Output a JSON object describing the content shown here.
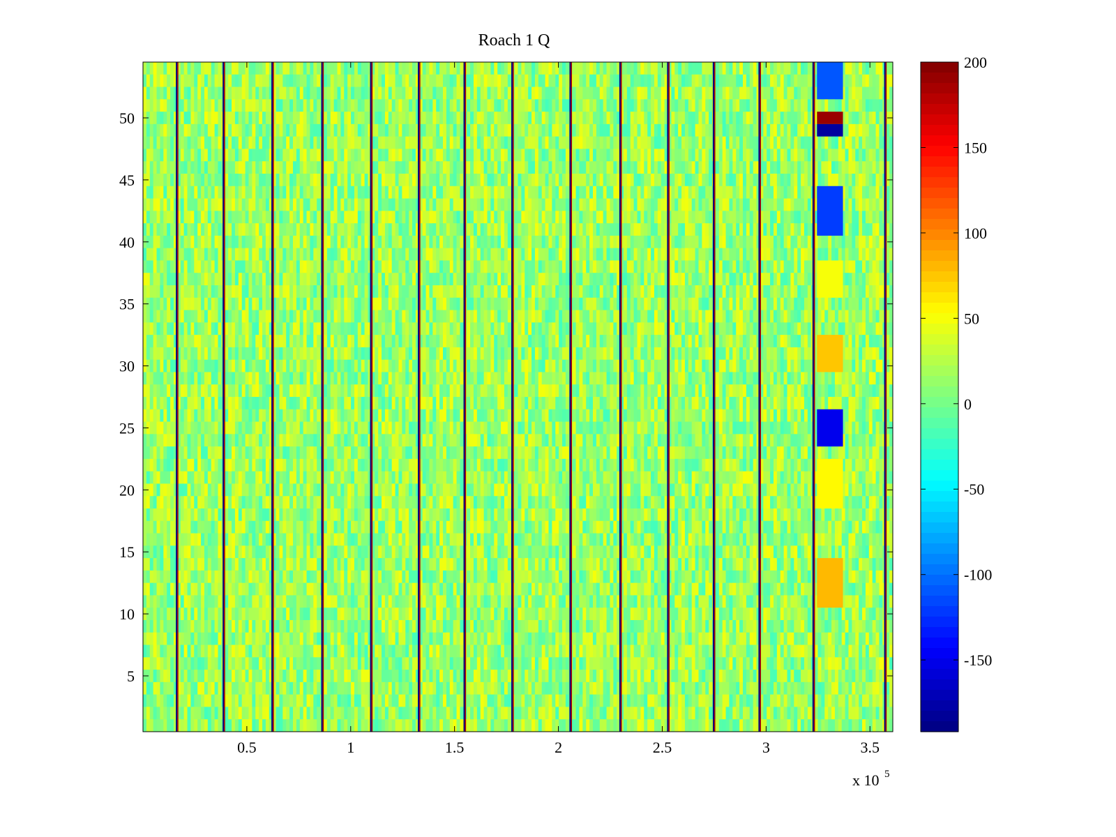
{
  "chart_data": {
    "type": "heatmap",
    "title": "Roach 1 Q",
    "xlabel": "",
    "ylabel": "",
    "x_multiplier_label": "x 10",
    "x_multiplier_exponent": "5",
    "xlim": [
      0,
      3.61
    ],
    "ylim": [
      0.5,
      54.5
    ],
    "rows": 54,
    "x_ticks": [
      0.5,
      1,
      1.5,
      2,
      2.5,
      3,
      3.5
    ],
    "x_tick_labels": [
      "0.5",
      "1",
      "1.5",
      "2",
      "2.5",
      "3",
      "3.5"
    ],
    "y_ticks": [
      5,
      10,
      15,
      20,
      25,
      30,
      35,
      40,
      45,
      50
    ],
    "y_tick_labels": [
      "5",
      "10",
      "15",
      "20",
      "25",
      "30",
      "35",
      "40",
      "45",
      "50"
    ],
    "colorbar": {
      "colormap": "jet",
      "clim": [
        -192,
        200
      ],
      "ticks": [
        200,
        150,
        100,
        50,
        0,
        -50,
        -100,
        -150
      ],
      "tick_labels": [
        "200",
        "150",
        "100",
        "50",
        "0",
        "-50",
        "-100",
        "-150"
      ]
    },
    "background_level": 15,
    "vertical_bands": [
      0.165,
      0.39,
      0.625,
      0.865,
      1.1,
      1.33,
      1.55,
      1.78,
      2.06,
      2.3,
      2.53,
      2.75,
      2.97,
      3.23,
      3.575
    ],
    "hotspots": [
      {
        "x_start": 3.245,
        "x_end": 3.37,
        "row_start": 50,
        "row_end": 50,
        "value": 190
      },
      {
        "x_start": 3.245,
        "x_end": 3.37,
        "row_start": 49,
        "row_end": 49,
        "value": -180
      },
      {
        "x_start": 3.245,
        "x_end": 3.37,
        "row_start": 24,
        "row_end": 26,
        "value": -150
      },
      {
        "x_start": 3.245,
        "x_end": 3.37,
        "row_start": 41,
        "row_end": 44,
        "value": -120
      },
      {
        "x_start": 3.245,
        "x_end": 3.37,
        "row_start": 52,
        "row_end": 54,
        "value": -110
      },
      {
        "x_start": 3.245,
        "x_end": 3.37,
        "row_start": 11,
        "row_end": 14,
        "value": 80
      },
      {
        "x_start": 3.245,
        "x_end": 3.37,
        "row_start": 30,
        "row_end": 32,
        "value": 75
      },
      {
        "x_start": 3.245,
        "x_end": 3.37,
        "row_start": 19,
        "row_end": 22,
        "value": 55
      },
      {
        "x_start": 3.245,
        "x_end": 3.37,
        "row_start": 36,
        "row_end": 38,
        "value": 50
      }
    ]
  }
}
